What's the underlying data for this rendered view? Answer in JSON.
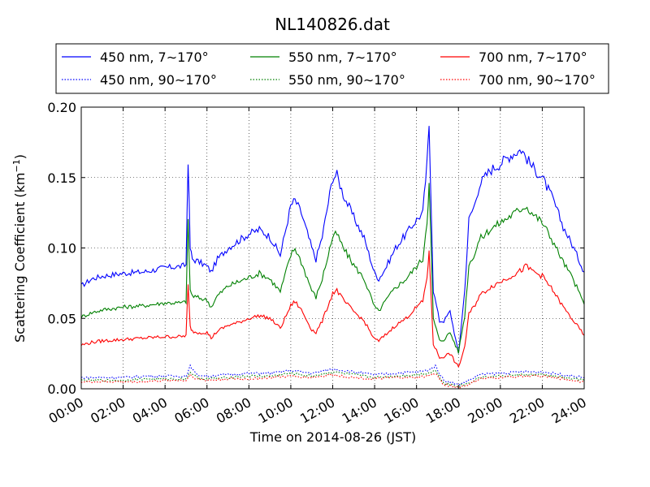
{
  "chart_data": {
    "type": "line",
    "title": "NL140826.dat",
    "xlabel": "Time on 2014-08-26 (JST)",
    "ylabel_main": "Scattering Coefficient (km",
    "ylabel_sup": "−1",
    "ylabel_close": ")",
    "xlim": [
      0,
      24
    ],
    "ylim": [
      0,
      0.2
    ],
    "x_unit": "hours",
    "x_ticks": [
      0,
      2,
      4,
      6,
      8,
      10,
      12,
      14,
      16,
      18,
      20,
      22,
      24
    ],
    "x_tick_labels": [
      "00:00",
      "02:00",
      "04:00",
      "06:00",
      "08:00",
      "10:00",
      "12:00",
      "14:00",
      "16:00",
      "18:00",
      "20:00",
      "22:00",
      "24:00"
    ],
    "y_ticks": [
      0,
      0.05,
      0.1,
      0.15,
      0.2
    ],
    "y_tick_labels": [
      "0.00",
      "0.05",
      "0.10",
      "0.15",
      "0.20"
    ],
    "grid": true,
    "legend_placement": "top",
    "series": [
      {
        "name": "450 nm, 7∼170°",
        "color": "#0000ff",
        "style": "solid",
        "x": [
          0,
          0.5,
          1,
          2,
          3,
          4,
          4.8,
          5,
          5.1,
          5.2,
          5.3,
          5.5,
          6,
          6.2,
          6.5,
          7,
          7.5,
          8,
          8.5,
          9,
          9.5,
          10,
          10.2,
          10.5,
          11,
          11.2,
          11.5,
          12,
          12.2,
          12.5,
          13,
          13.5,
          14,
          14.2,
          14.5,
          15,
          15.5,
          16,
          16.3,
          16.5,
          16.6,
          16.8,
          17.1,
          17.3,
          17.6,
          18,
          18.3,
          18.5,
          18.8,
          19,
          19.5,
          20,
          20.5,
          21,
          21.2,
          21.5,
          22,
          22.5,
          23,
          23.5,
          24
        ],
        "y": [
          0.073,
          0.078,
          0.08,
          0.082,
          0.083,
          0.086,
          0.087,
          0.088,
          0.163,
          0.1,
          0.092,
          0.091,
          0.087,
          0.083,
          0.092,
          0.1,
          0.105,
          0.11,
          0.113,
          0.108,
          0.095,
          0.13,
          0.134,
          0.125,
          0.1,
          0.092,
          0.108,
          0.15,
          0.152,
          0.138,
          0.122,
          0.107,
          0.082,
          0.078,
          0.085,
          0.1,
          0.11,
          0.12,
          0.125,
          0.16,
          0.188,
          0.07,
          0.048,
          0.048,
          0.055,
          0.025,
          0.07,
          0.12,
          0.132,
          0.145,
          0.155,
          0.16,
          0.166,
          0.17,
          0.165,
          0.158,
          0.15,
          0.135,
          0.115,
          0.1,
          0.083
        ]
      },
      {
        "name": "550 nm, 7∼170°",
        "color": "#008000",
        "style": "solid",
        "x": [
          0,
          0.5,
          1,
          2,
          3,
          4,
          4.8,
          5,
          5.1,
          5.2,
          5.3,
          5.5,
          6,
          6.2,
          6.5,
          7,
          7.5,
          8,
          8.5,
          9,
          9.5,
          10,
          10.2,
          10.5,
          11,
          11.2,
          11.5,
          12,
          12.2,
          12.5,
          13,
          13.5,
          14,
          14.2,
          14.5,
          15,
          15.5,
          16,
          16.3,
          16.5,
          16.6,
          16.8,
          17.1,
          17.3,
          17.6,
          18,
          18.3,
          18.5,
          18.8,
          19,
          19.5,
          20,
          20.5,
          21,
          21.2,
          21.5,
          22,
          22.5,
          23,
          23.5,
          24
        ],
        "y": [
          0.051,
          0.054,
          0.056,
          0.058,
          0.059,
          0.061,
          0.061,
          0.062,
          0.118,
          0.07,
          0.066,
          0.065,
          0.063,
          0.058,
          0.066,
          0.073,
          0.076,
          0.079,
          0.082,
          0.078,
          0.069,
          0.095,
          0.1,
          0.09,
          0.07,
          0.065,
          0.078,
          0.108,
          0.11,
          0.1,
          0.088,
          0.078,
          0.058,
          0.055,
          0.062,
          0.072,
          0.078,
          0.087,
          0.092,
          0.12,
          0.145,
          0.05,
          0.034,
          0.035,
          0.04,
          0.026,
          0.052,
          0.088,
          0.097,
          0.106,
          0.113,
          0.118,
          0.123,
          0.128,
          0.13,
          0.125,
          0.118,
          0.105,
          0.09,
          0.077,
          0.06
        ]
      },
      {
        "name": "700 nm, 7∼170°",
        "color": "#ff0000",
        "style": "solid",
        "x": [
          0,
          0.5,
          1,
          2,
          3,
          4,
          4.8,
          5,
          5.1,
          5.2,
          5.3,
          5.5,
          6,
          6.2,
          6.5,
          7,
          7.5,
          8,
          8.5,
          9,
          9.5,
          10,
          10.2,
          10.5,
          11,
          11.2,
          11.5,
          12,
          12.2,
          12.5,
          13,
          13.5,
          14,
          14.2,
          14.5,
          15,
          15.5,
          16,
          16.3,
          16.5,
          16.6,
          16.8,
          17.1,
          17.3,
          17.6,
          18,
          18.3,
          18.5,
          18.8,
          19,
          19.5,
          20,
          20.5,
          21,
          21.2,
          21.5,
          22,
          22.5,
          23,
          23.5,
          24
        ],
        "y": [
          0.031,
          0.033,
          0.034,
          0.035,
          0.036,
          0.037,
          0.037,
          0.038,
          0.073,
          0.044,
          0.041,
          0.04,
          0.04,
          0.036,
          0.041,
          0.045,
          0.047,
          0.05,
          0.052,
          0.05,
          0.043,
          0.059,
          0.062,
          0.056,
          0.042,
          0.04,
          0.048,
          0.068,
          0.07,
          0.063,
          0.055,
          0.048,
          0.035,
          0.034,
          0.038,
          0.045,
          0.05,
          0.058,
          0.062,
          0.08,
          0.096,
          0.032,
          0.022,
          0.023,
          0.025,
          0.015,
          0.03,
          0.053,
          0.06,
          0.066,
          0.072,
          0.076,
          0.08,
          0.084,
          0.087,
          0.084,
          0.08,
          0.07,
          0.058,
          0.048,
          0.038
        ]
      },
      {
        "name": "450 nm, 90∼170°",
        "color": "#0000ff",
        "style": "dotted",
        "x": [
          0,
          1,
          2,
          3,
          4,
          5,
          5.2,
          5.5,
          6,
          7,
          8,
          9,
          10,
          11,
          12,
          13,
          14,
          15,
          16,
          16.5,
          16.9,
          17.3,
          18,
          18.5,
          19,
          20,
          21,
          22,
          23,
          24
        ],
        "y": [
          0.008,
          0.008,
          0.008,
          0.009,
          0.009,
          0.009,
          0.016,
          0.01,
          0.009,
          0.01,
          0.011,
          0.011,
          0.013,
          0.011,
          0.014,
          0.012,
          0.01,
          0.011,
          0.012,
          0.013,
          0.016,
          0.006,
          0.003,
          0.006,
          0.01,
          0.011,
          0.012,
          0.012,
          0.01,
          0.008
        ]
      },
      {
        "name": "550 nm, 90∼170°",
        "color": "#008000",
        "style": "dotted",
        "x": [
          0,
          1,
          2,
          3,
          4,
          5,
          5.2,
          5.5,
          6,
          7,
          8,
          9,
          10,
          11,
          12,
          13,
          14,
          15,
          16,
          16.5,
          16.9,
          17.3,
          18,
          18.5,
          19,
          20,
          21,
          22,
          23,
          24
        ],
        "y": [
          0.006,
          0.006,
          0.006,
          0.007,
          0.007,
          0.007,
          0.012,
          0.008,
          0.007,
          0.008,
          0.009,
          0.009,
          0.011,
          0.009,
          0.012,
          0.01,
          0.008,
          0.009,
          0.01,
          0.011,
          0.013,
          0.004,
          0.002,
          0.004,
          0.008,
          0.009,
          0.01,
          0.01,
          0.008,
          0.006
        ]
      },
      {
        "name": "700 nm, 90∼170°",
        "color": "#ff0000",
        "style": "dotted",
        "x": [
          0,
          1,
          2,
          3,
          4,
          5,
          5.2,
          5.5,
          6,
          7,
          8,
          9,
          10,
          11,
          12,
          13,
          14,
          15,
          16,
          16.5,
          16.9,
          17.3,
          18,
          18.5,
          19,
          20,
          21,
          22,
          23,
          24
        ],
        "y": [
          0.005,
          0.005,
          0.005,
          0.005,
          0.006,
          0.006,
          0.01,
          0.007,
          0.006,
          0.007,
          0.007,
          0.008,
          0.009,
          0.008,
          0.01,
          0.008,
          0.007,
          0.008,
          0.008,
          0.009,
          0.011,
          0.003,
          0.001,
          0.003,
          0.007,
          0.008,
          0.009,
          0.009,
          0.007,
          0.005
        ]
      }
    ]
  }
}
